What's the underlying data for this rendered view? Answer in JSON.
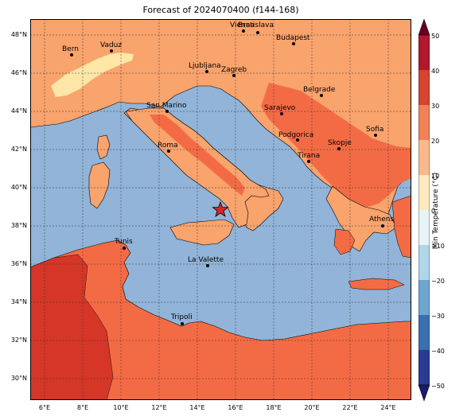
{
  "title": "Forecast of 2024070400 (f144-168)",
  "colors": {
    "sea": "#91b4d8",
    "band_20_30": "#f9a36d",
    "band_30_40": "#f36b45",
    "band_40_50": "#d53627",
    "band_10_20": "#fde6a6",
    "land_border": "#000000",
    "grid": "#333333"
  },
  "lat_labels": [
    "48°N",
    "46°N",
    "44°N",
    "42°N",
    "40°N",
    "38°N",
    "36°N",
    "34°N",
    "32°N",
    "30°N"
  ],
  "lon_labels": [
    "6°E",
    "8°E",
    "10°E",
    "12°E",
    "14°E",
    "16°E",
    "18°E",
    "20°E",
    "22°E",
    "24°E"
  ],
  "cities": [
    {
      "name": "Bern"
    },
    {
      "name": "Vaduz"
    },
    {
      "name": "Vienna"
    },
    {
      "name": "Bratislava"
    },
    {
      "name": "Budapest"
    },
    {
      "name": "Ljubljana"
    },
    {
      "name": "Zagreb"
    },
    {
      "name": "Belgrade"
    },
    {
      "name": "San Marino"
    },
    {
      "name": "Sarajevo"
    },
    {
      "name": "Podgorica"
    },
    {
      "name": "Sofia"
    },
    {
      "name": "Roma"
    },
    {
      "name": "Skopje"
    },
    {
      "name": "Tirana"
    },
    {
      "name": "Athens"
    },
    {
      "name": "Tunis"
    },
    {
      "name": "La Valette"
    },
    {
      "name": "Tripoli"
    }
  ],
  "marker": {
    "type": "star",
    "color": "#d62728"
  },
  "colorbar": {
    "label": "Min Temperature (°C)",
    "ticks": [
      "50",
      "40",
      "30",
      "20",
      "10",
      "0",
      "−10",
      "−20",
      "−30",
      "−40",
      "−50"
    ],
    "colors": [
      "#8a0c26",
      "#c52a2a",
      "#e8553b",
      "#f99a5d",
      "#fdd99b",
      "#fef7d7",
      "#e3f2f8",
      "#aed3e6",
      "#6fa4cd",
      "#3d6cb0",
      "#313695"
    ]
  }
}
